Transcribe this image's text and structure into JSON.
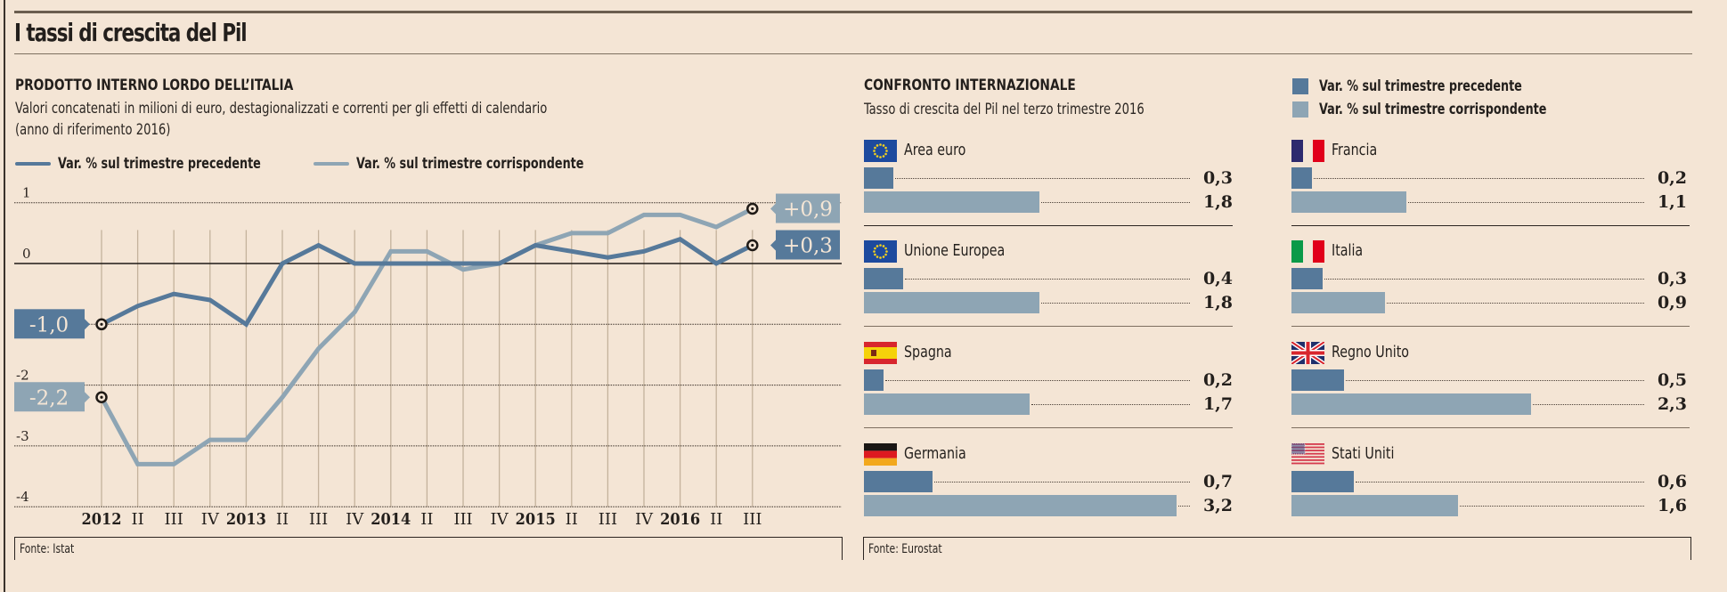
{
  "title": "I tassi di crescita del Pil",
  "colors": {
    "background": "#f4e5d5",
    "prev": "#56799a",
    "corr": "#8ea5b4",
    "text": "#231f1c"
  },
  "left": {
    "heading": "PRODOTTO INTERNO LORDO DELL’ITALIA",
    "subtitle_line1": "Valori concatenati in milioni di euro, destagionalizzati e correnti per gli effetti di calendario",
    "subtitle_line2": "(anno di riferimento 2016)",
    "legend": {
      "prev": "Var. % sul trimestre precedente",
      "corr": "Var. % sul trimestre corrispondente"
    },
    "source": "Fonte: Istat"
  },
  "right": {
    "heading": "CONFRONTO INTERNAZIONALE",
    "subtitle": "Tasso di crescita del Pil nel terzo trimestre 2016",
    "legend": {
      "prev": "Var. % sul trimestre precedente",
      "corr": "Var. % sul trimestre corrispondente"
    },
    "source": "Fonte: Eurostat"
  },
  "chart_data": [
    {
      "type": "line",
      "title": "PRODOTTO INTERNO LORDO DELL’ITALIA",
      "xlabel": "",
      "ylabel": "Var. %",
      "ylim": [
        -4,
        1
      ],
      "yticks": [
        "1",
        "0",
        "-2",
        "-3",
        "-4"
      ],
      "ytick_values": [
        1,
        0,
        -2,
        -3,
        -4
      ],
      "grid": true,
      "legend_position": "top-left",
      "x": [
        "2012",
        "II",
        "III",
        "IV",
        "2013",
        "II",
        "III",
        "IV",
        "2014",
        "II",
        "III",
        "IV",
        "2015",
        "II",
        "III",
        "IV",
        "2016",
        "II",
        "III"
      ],
      "x_bold": [
        true,
        false,
        false,
        false,
        true,
        false,
        false,
        false,
        true,
        false,
        false,
        false,
        true,
        false,
        false,
        false,
        true,
        false,
        false
      ],
      "series": [
        {
          "name": "Var. % sul trimestre precedente",
          "values": [
            -1.0,
            -0.7,
            -0.5,
            -0.6,
            -1.0,
            0.0,
            0.3,
            0.0,
            0.0,
            0.0,
            0.0,
            0.0,
            0.3,
            0.2,
            0.1,
            0.2,
            0.4,
            0.0,
            0.3
          ],
          "start_label": "-1,0",
          "end_label": "+0,3"
        },
        {
          "name": "Var. % sul trimestre corrispondente",
          "values": [
            -2.2,
            -3.3,
            -3.3,
            -2.9,
            -2.9,
            -2.2,
            -1.4,
            -0.8,
            0.2,
            0.2,
            -0.1,
            0.0,
            0.3,
            0.5,
            0.5,
            0.8,
            0.8,
            0.6,
            0.9
          ],
          "start_label": "-2,2",
          "end_label": "+0,9"
        }
      ]
    },
    {
      "type": "bar",
      "title": "CONFRONTO INTERNAZIONALE",
      "subtitle": "Tasso di crescita del Pil nel terzo trimestre 2016",
      "orientation": "horizontal",
      "legend_position": "top-right",
      "categories": [
        "Area euro",
        "Unione Europea",
        "Spagna",
        "Germania",
        "Francia",
        "Italia",
        "Regno Unito",
        "Stati Uniti"
      ],
      "flags": [
        "eu",
        "eu",
        "es",
        "de",
        "fr",
        "it",
        "gb",
        "us"
      ],
      "series": [
        {
          "name": "Var. % sul trimestre precedente",
          "values": [
            0.3,
            0.4,
            0.2,
            0.7,
            0.2,
            0.3,
            0.5,
            0.6
          ],
          "labels": [
            "0,3",
            "0,4",
            "0,2",
            "0,7",
            "0,2",
            "0,3",
            "0,5",
            "0,6"
          ]
        },
        {
          "name": "Var. % sul trimestre corrispondente",
          "values": [
            1.8,
            1.8,
            1.7,
            3.2,
            1.1,
            0.9,
            2.3,
            1.6
          ],
          "labels": [
            "1,8",
            "1,8",
            "1,7",
            "3,2",
            "1,1",
            "0,9",
            "2,3",
            "1,6"
          ]
        }
      ]
    }
  ]
}
